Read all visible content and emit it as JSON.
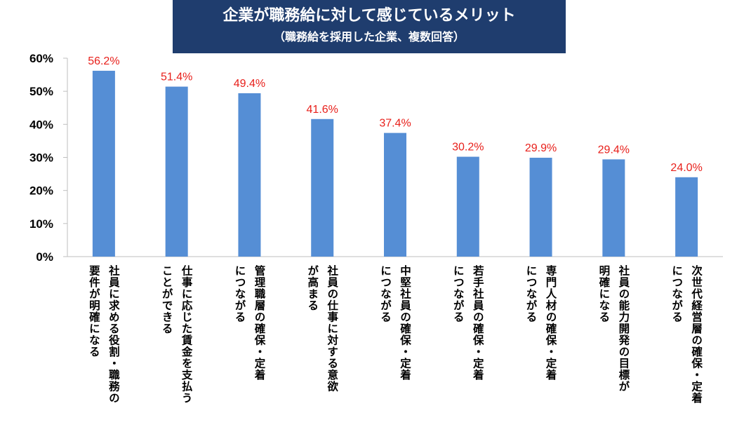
{
  "chart_data": {
    "type": "bar",
    "title": "企業が職務給に対して感じているメリット",
    "subtitle": "（職務給を採用した企業、複数回答）",
    "categories": [
      "社員に求める役割・職務の\n要件が明確になる",
      "仕事に応じた賃金を支払う\nことができる",
      "管理職層の確保・定着\nにつながる",
      "社員の仕事に対する意欲\nが高まる",
      "中堅社員の確保・定着\nにつながる",
      "若手社員の確保・定着\nにつながる",
      "専門人材の確保・定着\nにつながる",
      "社員の能力開発の目標が\n明確になる",
      "次世代経営層の確保・定着\nにつながる"
    ],
    "values": [
      56.2,
      51.4,
      49.4,
      41.6,
      37.4,
      30.2,
      29.9,
      29.4,
      24.0
    ],
    "data_labels": [
      "56.2%",
      "51.4%",
      "49.4%",
      "41.6%",
      "37.4%",
      "30.2%",
      "29.9%",
      "29.4%",
      "24.0%"
    ],
    "yticks": [
      "0%",
      "10%",
      "20%",
      "30%",
      "40%",
      "50%",
      "60%"
    ],
    "ylim": [
      0,
      60
    ],
    "grid": false,
    "colors": {
      "bar": "#558ed5",
      "label": "#e8201b",
      "title_bg": "#1f3d6e"
    }
  }
}
